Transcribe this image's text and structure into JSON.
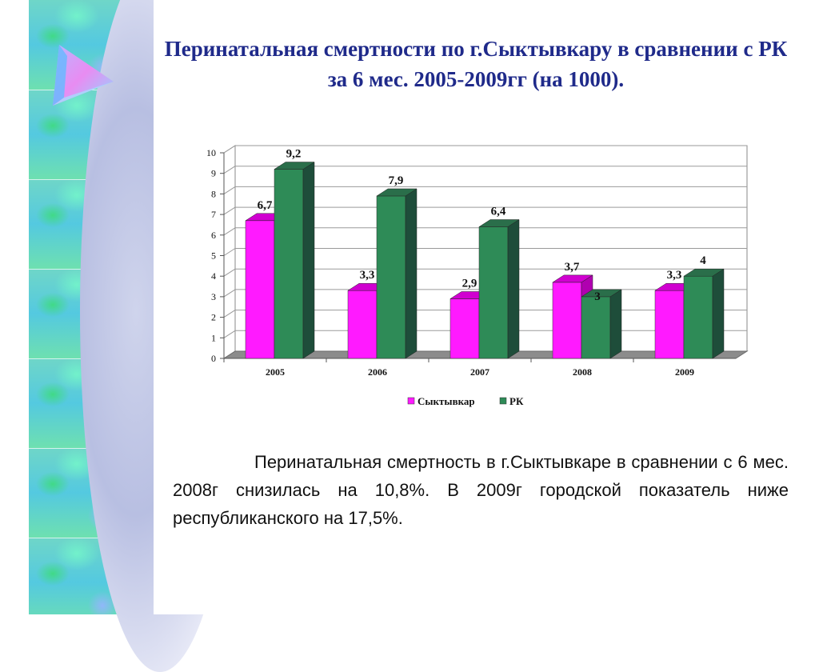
{
  "slide": {
    "title": "Перинатальная смертности по г.Сыктывкару в сравнении с РК за 6 мес. 2005-2009гг (на 1000).",
    "body": "Перинатальная смертность в г.Сыктывкаре в сравнении с 6 мес. 2008г снизилась на 10,8%. В 2009г городской показатель ниже республиканского на 17,5%."
  },
  "chart_data": {
    "type": "bar",
    "categories": [
      "2005",
      "2006",
      "2007",
      "2008",
      "2009"
    ],
    "series": [
      {
        "name": "Сыктывкар",
        "values": [
          6.7,
          3.3,
          2.9,
          3.7,
          3.3
        ],
        "labels": [
          "6,7",
          "3,3",
          "2,9",
          "3,7",
          "3,3"
        ],
        "color": "#ff1aff",
        "side_color": "#b000b0",
        "top_color": "#d000d0"
      },
      {
        "name": "РК",
        "values": [
          9.2,
          7.9,
          6.4,
          3,
          4
        ],
        "labels": [
          "9,2",
          "7,9",
          "6,4",
          "3",
          "4"
        ],
        "color": "#2e8b57",
        "side_color": "#1e4d3a",
        "top_color": "#2a6e4a"
      }
    ],
    "ylim": [
      0,
      10
    ],
    "yticks": [
      "0",
      "1",
      "2",
      "3",
      "4",
      "5",
      "6",
      "7",
      "8",
      "9",
      "10"
    ],
    "grid": true,
    "legend_position": "bottom",
    "title": "",
    "xlabel": "",
    "ylabel": ""
  }
}
